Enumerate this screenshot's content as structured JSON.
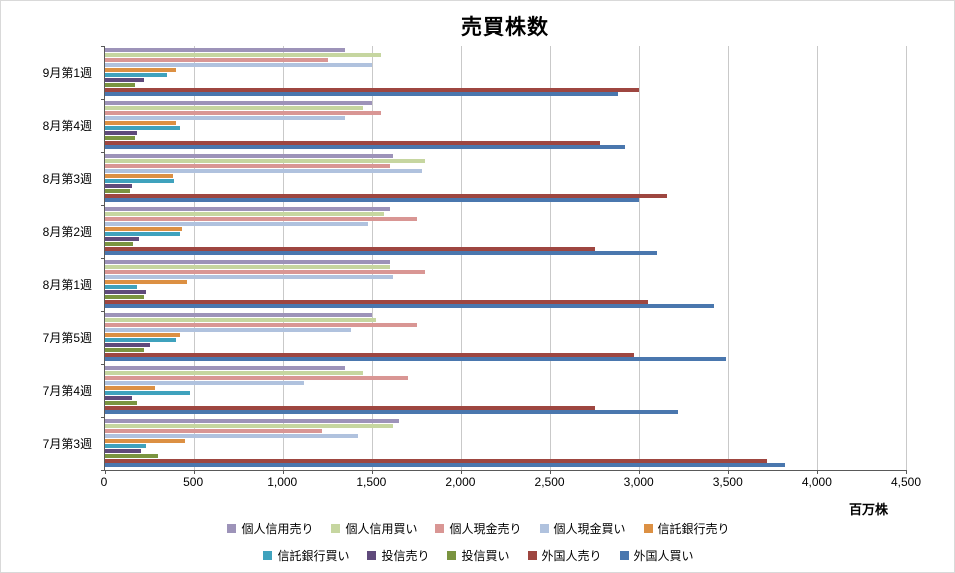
{
  "chart_data": {
    "type": "bar",
    "orientation": "horizontal",
    "title": "売買株数",
    "unit_label": "百万株",
    "xlim": [
      0,
      4500
    ],
    "xticks": [
      0,
      500,
      1000,
      1500,
      2000,
      2500,
      3000,
      3500,
      4000,
      4500
    ],
    "xtick_labels": [
      "0",
      "500",
      "1,000",
      "1,500",
      "2,000",
      "2,500",
      "3,000",
      "3,500",
      "4,000",
      "4,500"
    ],
    "categories": [
      "9月第1週",
      "8月第4週",
      "8月第3週",
      "8月第2週",
      "8月第1週",
      "7月第5週",
      "7月第4週",
      "7月第3週"
    ],
    "grid": true,
    "legend_position": "bottom",
    "series": [
      {
        "name": "個人信用売り",
        "color": "#9d93b9",
        "values": [
          1350,
          1500,
          1620,
          1600,
          1600,
          1500,
          1350,
          1650
        ]
      },
      {
        "name": "個人信用買い",
        "color": "#c6d6a0",
        "values": [
          1550,
          1450,
          1800,
          1570,
          1600,
          1520,
          1450,
          1620
        ]
      },
      {
        "name": "個人現金売り",
        "color": "#d99694",
        "values": [
          1250,
          1550,
          1600,
          1750,
          1800,
          1750,
          1700,
          1220
        ]
      },
      {
        "name": "個人現金買い",
        "color": "#b0c2de",
        "values": [
          1500,
          1350,
          1780,
          1480,
          1620,
          1380,
          1120,
          1420
        ]
      },
      {
        "name": "信託銀行売り",
        "color": "#dc9043",
        "values": [
          400,
          400,
          380,
          430,
          460,
          420,
          280,
          450
        ]
      },
      {
        "name": "信託銀行買い",
        "color": "#3fa2bd",
        "values": [
          350,
          420,
          390,
          420,
          180,
          400,
          480,
          230
        ]
      },
      {
        "name": "投信売り",
        "color": "#5f4a7b",
        "values": [
          220,
          180,
          150,
          190,
          230,
          250,
          150,
          200
        ]
      },
      {
        "name": "投信買い",
        "color": "#7a9440",
        "values": [
          170,
          170,
          140,
          160,
          220,
          220,
          180,
          300
        ]
      },
      {
        "name": "外国人売り",
        "color": "#9e4640",
        "values": [
          3000,
          2780,
          3160,
          2750,
          3050,
          2970,
          2750,
          3720
        ]
      },
      {
        "name": "外国人買い",
        "color": "#4a77ae",
        "values": [
          2880,
          2920,
          3000,
          3100,
          3420,
          3490,
          3220,
          3820
        ]
      }
    ]
  }
}
